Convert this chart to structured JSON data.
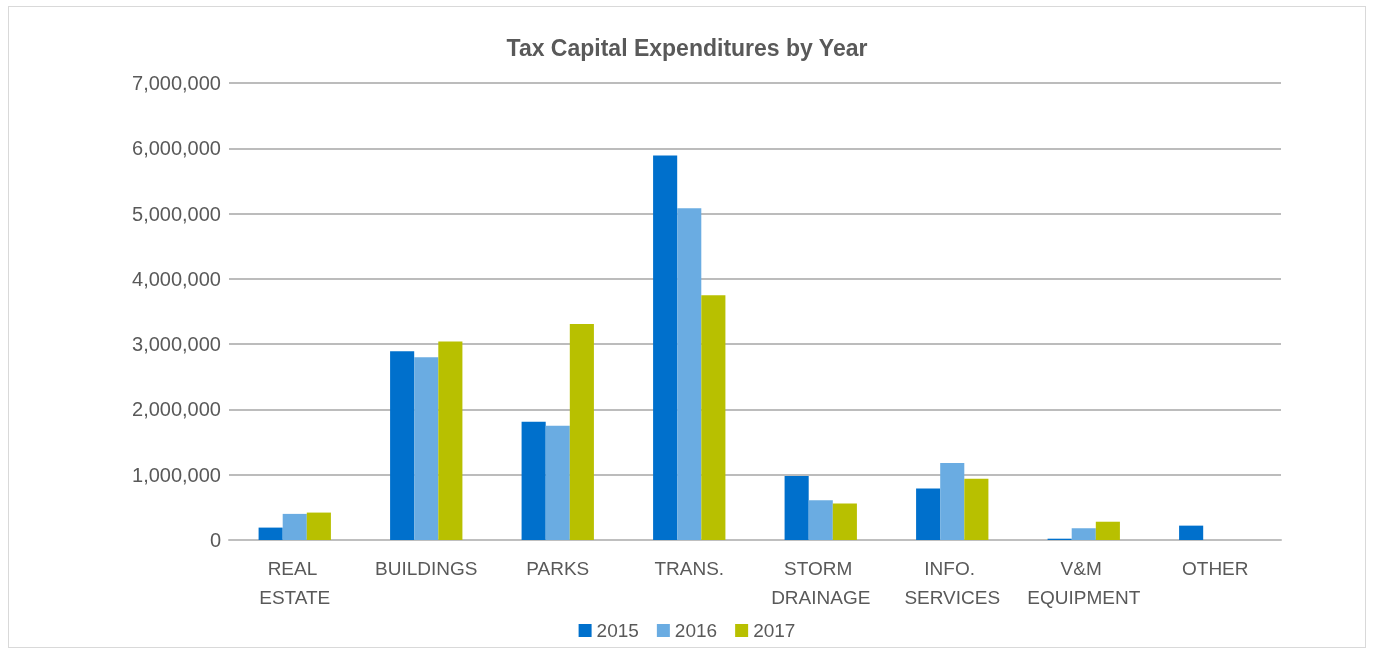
{
  "chart_data": {
    "type": "bar",
    "title": "Tax Capital Expenditures by Year",
    "categories": [
      "REAL ESTATE",
      "BUILDINGS",
      "PARKS",
      "TRANS.",
      "STORM DRAINAGE",
      "INFO. SERVICES",
      "V&M EQUIPMENT",
      "OTHER"
    ],
    "series": [
      {
        "name": "2015",
        "color": "#0070cc",
        "values": [
          190000,
          2890000,
          1810000,
          5890000,
          980000,
          790000,
          20000,
          220000
        ]
      },
      {
        "name": "2016",
        "color": "#6aace2",
        "values": [
          400000,
          2800000,
          1750000,
          5080000,
          610000,
          1180000,
          180000,
          0
        ]
      },
      {
        "name": "2017",
        "color": "#b8c000",
        "values": [
          420000,
          3040000,
          3310000,
          3750000,
          560000,
          940000,
          280000,
          0
        ]
      }
    ],
    "ylim": [
      0,
      7000000
    ],
    "yticks": [
      0,
      {
        "value": 1000000,
        "label": "1,000,000"
      },
      {
        "value": 2000000,
        "label": "2,000,000"
      },
      {
        "value": 3000000,
        "label": "3,000,000"
      },
      {
        "value": 4000000,
        "label": "4,000,000"
      },
      {
        "value": 5000000,
        "label": "5,000,000"
      },
      {
        "value": 6000000,
        "label": "6,000,000"
      },
      {
        "value": 7000000,
        "label": "7,000,000"
      }
    ],
    "grid": "y",
    "legend": "bottom"
  }
}
